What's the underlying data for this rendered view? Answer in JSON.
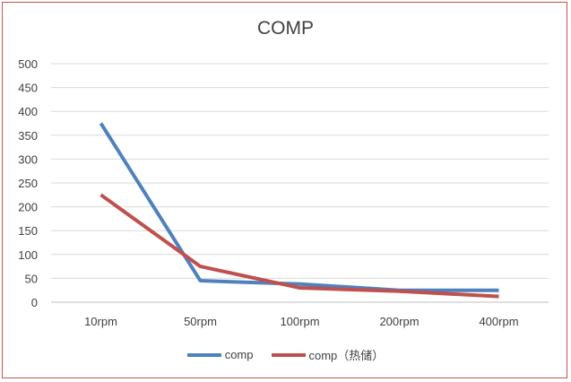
{
  "chart_data": {
    "type": "line",
    "title": "COMP",
    "categories": [
      "10rpm",
      "50rpm",
      "100rpm",
      "200rpm",
      "400rpm"
    ],
    "series": [
      {
        "name": "comp",
        "color": "#4f81bd",
        "values": [
          375,
          45,
          38,
          25,
          25
        ]
      },
      {
        "name": "comp（热储）",
        "color": "#c0504d",
        "values": [
          225,
          75,
          30,
          23,
          12
        ]
      }
    ],
    "ylim": [
      0,
      500
    ],
    "yticks": [
      0,
      50,
      100,
      150,
      200,
      250,
      300,
      350,
      400,
      450,
      500
    ],
    "grid": true,
    "legend": "bottom"
  }
}
